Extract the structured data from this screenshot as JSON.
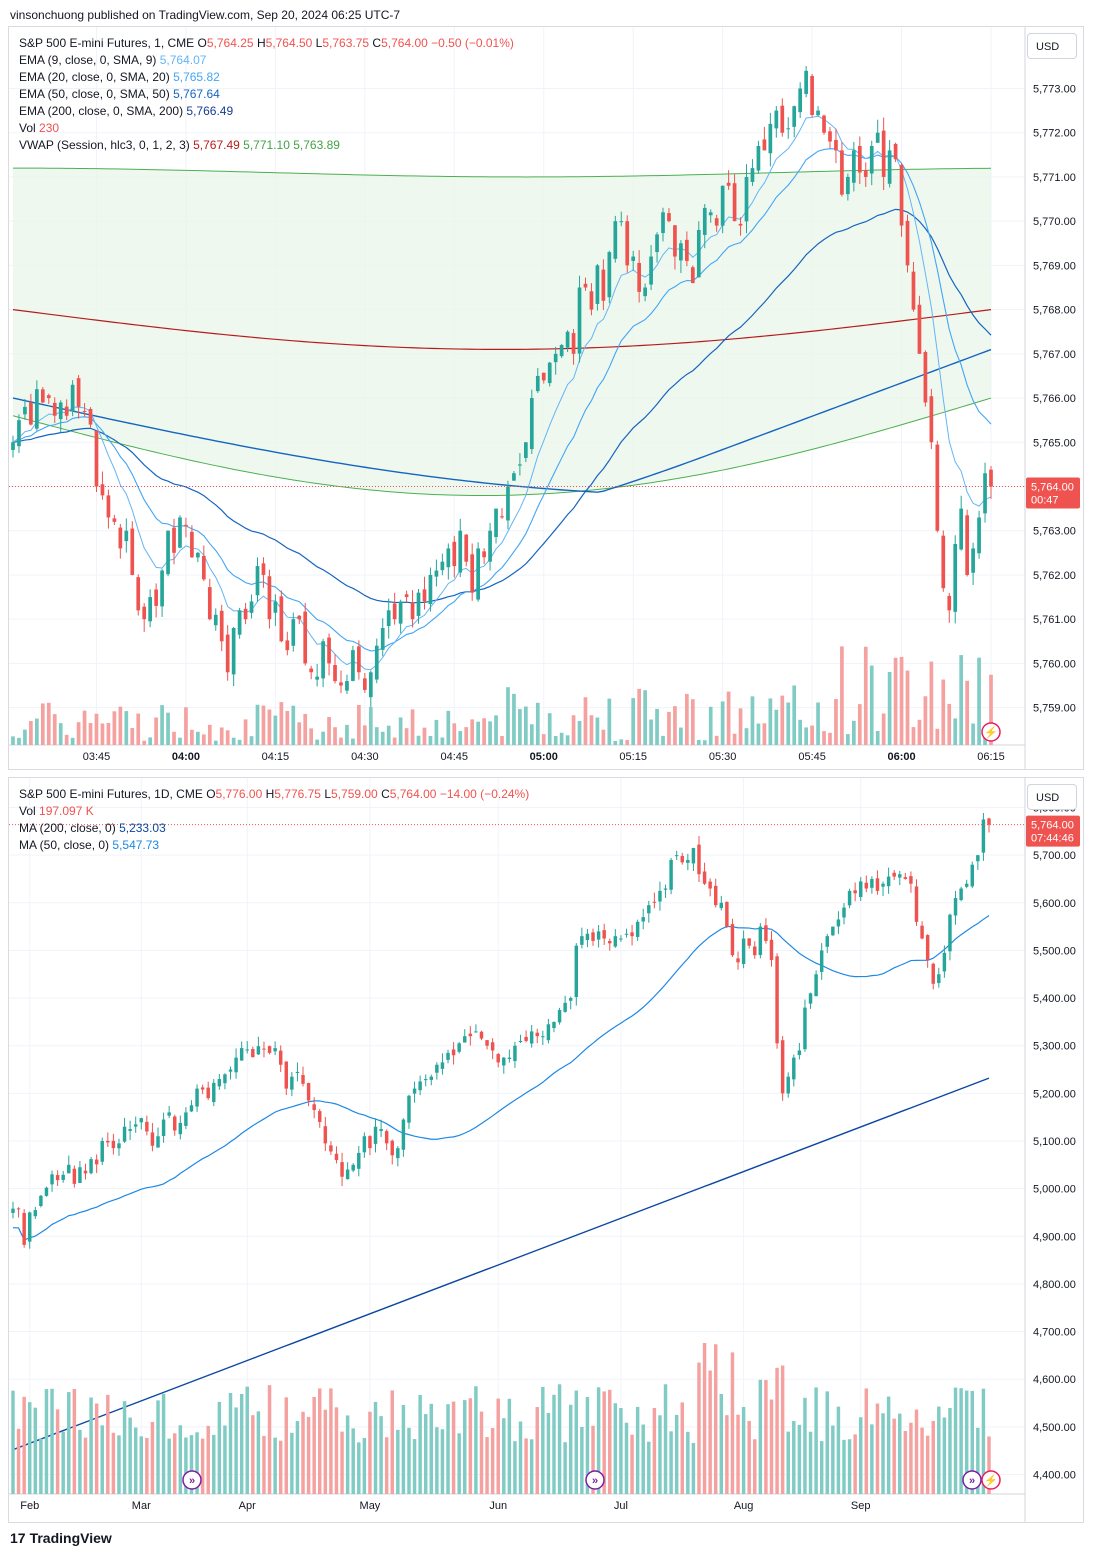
{
  "header": {
    "text": "vinsonchuong published on TradingView.com, Sep 20, 2024 06:25 UTC-7"
  },
  "footer": {
    "logo_mark": "17",
    "brand": "TradingView"
  },
  "colors": {
    "up": "#26a69a",
    "down": "#ef5350",
    "up_vol": "#80cbc4",
    "down_vol": "#f4a1a0",
    "ema9": "#64b5f6",
    "ema20": "#42a5f5",
    "ema50": "#1565c0",
    "ema200": "#b71c1c",
    "vwap_upper": "#2e7d32",
    "vwap_fill": "#e8f5e9",
    "ma200": "#0d47a1",
    "ma50": "#1e88e5"
  },
  "top_panel": {
    "currency": "USD",
    "legend": {
      "title": "S&P 500 E-mini Futures, 1, CME",
      "o_label": "O",
      "o": "5,764.25",
      "h_label": "H",
      "h": "5,764.50",
      "l_label": "L",
      "l": "5,763.75",
      "c_label": "C",
      "c": "5,764.00",
      "chg": "−0.50 (−0.01%)",
      "ema9_label": "EMA (9, close, 0, SMA, 9)",
      "ema9": "5,764.07",
      "ema20_label": "EMA (20, close, 0, SMA, 20)",
      "ema20": "5,765.82",
      "ema50_label": "EMA (50, close, 0, SMA, 50)",
      "ema50": "5,767.64",
      "ema200_label": "EMA (200, close, 0, SMA, 200)",
      "ema200": "5,766.49",
      "vol_label": "Vol",
      "vol": "230",
      "vwap_label": "VWAP (Session, hlc3, 0, 1, 2, 3)",
      "vwap1": "5,767.49",
      "vwap2": "5,771.10",
      "vwap3": "5,763.89"
    },
    "price_tag": "5,764.00",
    "countdown": "00:47"
  },
  "bottom_panel": {
    "currency": "USD",
    "legend": {
      "title": "S&P 500 E-mini Futures, 1D, CME",
      "o_label": "O",
      "o": "5,776.00",
      "h_label": "H",
      "h": "5,776.75",
      "l_label": "L",
      "l": "5,759.00",
      "c_label": "C",
      "c": "5,764.00",
      "chg": "−14.00 (−0.24%)",
      "vol_label": "Vol",
      "vol": "197.097 K",
      "ma200_label": "MA (200, close, 0)",
      "ma200": "5,233.03",
      "ma50_label": "MA (50, close, 0)",
      "ma50": "5,547.73"
    },
    "price_tag": "5,764.00",
    "countdown": "07:44:46"
  },
  "chart_data": [
    {
      "type": "candlestick",
      "title": "S&P 500 E-mini Futures, 1, CME",
      "y_ticks": [
        "5,773.00",
        "5,772.00",
        "5,771.00",
        "5,770.00",
        "5,769.00",
        "5,768.00",
        "5,767.00",
        "5,766.00",
        "5,765.00",
        "5,764.00",
        "5,763.00",
        "5,762.00",
        "5,761.00",
        "5,760.00",
        "5,759.00"
      ],
      "x_ticks": [
        "03:45",
        "04:00",
        "04:15",
        "04:30",
        "04:45",
        "05:00",
        "05:15",
        "05:30",
        "05:45",
        "06:00",
        "06:15"
      ],
      "ylim": [
        5758.2,
        5774.3
      ],
      "closes": [
        5765.0,
        5765.5,
        5765.8,
        5765.4,
        5766.2,
        5765.9,
        5766.0,
        5765.6,
        5765.9,
        5765.6,
        5766.3,
        5765.8,
        5765.7,
        5765.4,
        5764.0,
        5763.8,
        5763.3,
        5763.2,
        5762.6,
        5763.0,
        5762.0,
        5761.2,
        5761.0,
        5761.5,
        5761.3,
        5762.1,
        5763.0,
        5762.5,
        5763.3,
        5763.1,
        5762.4,
        5762.5,
        5761.9,
        5761.0,
        5761.1,
        5760.5,
        5759.8,
        5760.8,
        5761.2,
        5761.0,
        5761.4,
        5762.2,
        5762.0,
        5761.0,
        5761.4,
        5760.5,
        5760.3,
        5761.0,
        5761.0,
        5760.0,
        5759.8,
        5759.7,
        5760.5,
        5760.0,
        5759.6,
        5759.5,
        5759.6,
        5760.3,
        5759.8,
        5759.4,
        5759.8,
        5760.4,
        5760.8,
        5761.2,
        5761.0,
        5761.4,
        5761.5,
        5761.0,
        5761.6,
        5761.4,
        5762.0,
        5762.1,
        5762.3,
        5762.6,
        5762.2,
        5763.0,
        5762.3,
        5761.6,
        5762.6,
        5762.4,
        5763.0,
        5763.5,
        5763.3,
        5764.0,
        5764.3,
        5764.5,
        5765.0,
        5766.0,
        5766.5,
        5766.4,
        5766.8,
        5767.0,
        5767.2,
        5767.5,
        5767.0,
        5768.5,
        5768.5,
        5768.0,
        5769.0,
        5768.2,
        5769.3,
        5770.0,
        5770.0,
        5769.0,
        5769.2,
        5768.4,
        5768.5,
        5769.2,
        5769.7,
        5770.2,
        5770.0,
        5769.2,
        5769.5,
        5769.1,
        5768.6,
        5769.8,
        5770.3,
        5770.2,
        5769.9,
        5770.8,
        5770.8,
        5770.0,
        5769.9,
        5771.0,
        5771.2,
        5771.7,
        5771.6,
        5772.2,
        5772.5,
        5772.0,
        5772.1,
        5772.6,
        5773.0,
        5773.4,
        5772.4,
        5772.5,
        5772.0,
        5771.8,
        5771.6,
        5770.6,
        5771.0,
        5771.6,
        5771.1,
        5771.0,
        5771.7,
        5772.0,
        5771.0,
        5771.6,
        5771.4,
        5769.9,
        5769.0,
        5768.0,
        5767.0,
        5765.9,
        5765.0,
        5763.0,
        5761.7,
        5761.2,
        5762.7,
        5763.5,
        5762.0,
        5762.6,
        5763.3,
        5764.3,
        5764.0
      ]
    },
    {
      "type": "candlestick",
      "title": "S&P 500 E-mini Futures, 1D, CME",
      "y_ticks": [
        "5,800.00",
        "5,700.00",
        "5,600.00",
        "5,500.00",
        "5,400.00",
        "5,300.00",
        "5,200.00",
        "5,100.00",
        "5,000.00",
        "4,900.00",
        "4,800.00",
        "4,700.00",
        "4,600.00",
        "4,500.00",
        "4,400.00"
      ],
      "x_ticks": [
        "Feb",
        "Mar",
        "Apr",
        "May",
        "Jun",
        "Jul",
        "Aug",
        "Sep"
      ],
      "ylim": [
        4380,
        5820
      ],
      "closes": [
        4958,
        4957,
        4882,
        4950,
        4955,
        4985,
        5002,
        5030,
        5018,
        5029,
        5050,
        5010,
        5045,
        5032,
        5062,
        5051,
        5100,
        5097,
        5085,
        5095,
        5130,
        5125,
        5135,
        5148,
        5120,
        5090,
        5110,
        5145,
        5160,
        5122,
        5138,
        5160,
        5175,
        5210,
        5208,
        5190,
        5222,
        5230,
        5240,
        5250,
        5275,
        5295,
        5292,
        5276,
        5299,
        5292,
        5285,
        5295,
        5260,
        5210,
        5235,
        5245,
        5220,
        5185,
        5165,
        5140,
        5095,
        5078,
        5060,
        5025,
        5040,
        5050,
        5075,
        5110,
        5085,
        5130,
        5125,
        5095,
        5070,
        5085,
        5145,
        5195,
        5210,
        5225,
        5230,
        5235,
        5260,
        5265,
        5285,
        5280,
        5305,
        5320,
        5320,
        5330,
        5315,
        5300,
        5290,
        5265,
        5275,
        5275,
        5300,
        5310,
        5310,
        5330,
        5320,
        5320,
        5345,
        5350,
        5375,
        5390,
        5400,
        5510,
        5530,
        5535,
        5520,
        5540,
        5525,
        5515,
        5530,
        5525,
        5535,
        5530,
        5560,
        5570,
        5595,
        5600,
        5625,
        5630,
        5690,
        5700,
        5685,
        5690,
        5715,
        5660,
        5640,
        5630,
        5595,
        5600,
        5550,
        5490,
        5475,
        5525,
        5510,
        5490,
        5550,
        5520,
        5480,
        5305,
        5200,
        5235,
        5275,
        5290,
        5380,
        5410,
        5450,
        5500,
        5530,
        5550,
        5565,
        5590,
        5625,
        5620,
        5645,
        5630,
        5650,
        5625,
        5640,
        5655,
        5655,
        5660,
        5650,
        5640,
        5560,
        5525,
        5480,
        5430,
        5450,
        5495,
        5575,
        5610,
        5630,
        5640,
        5680,
        5700,
        5775,
        5764
      ]
    }
  ]
}
